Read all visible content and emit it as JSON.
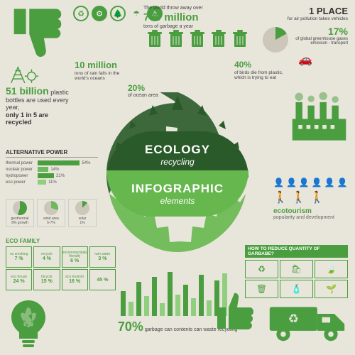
{
  "colors": {
    "bg": "#e8e5db",
    "green": "#4a9e3f",
    "darkgreen": "#2a5a2a",
    "lightgreen": "#66b84e",
    "text": "#444444",
    "muted": "#999999",
    "cream": "#ccc7b8"
  },
  "top_icons": [
    "recycle",
    "factory",
    "tree",
    "umbrella",
    "warning"
  ],
  "garbage_stat": {
    "intro": "The world throw away over",
    "value": "750 million",
    "unit": "tons of garbage a year",
    "bin_count": 5
  },
  "place_stat": {
    "rank": "1 PLACE",
    "desc": "for air pollution takes vehicles"
  },
  "gases_stat": {
    "pct": "17%",
    "pct_value": 17,
    "desc": "of global greenhouse gases emission - transport"
  },
  "plastic_stat": {
    "value": "51 billion",
    "line1": "plastic bottles are used every year,",
    "line2": "only 1 in 5 are recycled"
  },
  "rain_stat": {
    "value": "10 million",
    "desc": "tons of rain falls in the world's oceans"
  },
  "ocean20": {
    "value": "20%",
    "desc": "of ocean area"
  },
  "birds_stat": {
    "value": "40%",
    "desc": "of birds die from plastic, which is trying to eat"
  },
  "center": {
    "title1": "ECOLOGY",
    "sub1": "recycling",
    "title2": "INFOGRAPHIC",
    "sub2": "elements"
  },
  "alt_power": {
    "title": "ALTERNATIVE POWER",
    "bars": [
      {
        "label": "thermal power",
        "pct": 54,
        "color": "#4a9e3f"
      },
      {
        "label": "nuclear power",
        "pct": 14,
        "color": "#6fb85f"
      },
      {
        "label": "hydropower",
        "pct": 21,
        "color": "#4a9e3f"
      },
      {
        "label": "eco power",
        "pct": 11,
        "color": "#8fcf7f"
      }
    ],
    "mini": [
      {
        "label": "geothermal",
        "sub": "8% growth",
        "pie": 55,
        "c1": "#4a9e3f",
        "c2": "#ccc7b8"
      },
      {
        "label": "wind area",
        "sub": "5-7%",
        "pie": 30,
        "c1": "#6fb85f",
        "c2": "#ccc7b8"
      },
      {
        "label": "solar",
        "sub": "1%",
        "pie": 12,
        "c1": "#4a9e3f",
        "c2": "#ccc7b8"
      }
    ]
  },
  "eco_family": {
    "title": "ECO FAMILY",
    "cells": [
      {
        "label": "no smoking",
        "v": "7 %"
      },
      {
        "label": "recycle",
        "v": "4 %"
      },
      {
        "label": "environmentally friendly",
        "v": "6 %"
      },
      {
        "label": "rain water",
        "v": "3 %"
      },
      {
        "label": "eco house",
        "v": "24 %"
      },
      {
        "label": "bicycle",
        "v": "15 %"
      },
      {
        "label": "eco tourism",
        "v": "16 %"
      },
      {
        "label": "",
        "v": "45 %"
      }
    ]
  },
  "ecotourism": {
    "title": "ecotourism",
    "sub": "popularity and development",
    "people_count": 6,
    "hiker_count": 3
  },
  "reduce": {
    "title": "HOW TO REDUCE QUANTITY OF GARBABE?",
    "icons": [
      "recycle",
      "bag",
      "leaf",
      "bin",
      "bottle",
      "plant"
    ]
  },
  "bottom_bars": {
    "values": [
      35,
      20,
      48,
      28,
      55,
      18,
      62,
      30,
      44,
      25,
      58,
      22,
      50,
      60
    ],
    "color_alt": [
      "#4a9e3f",
      "#8fcf7f"
    ]
  },
  "garbage70": {
    "value": "70%",
    "desc": "garbage can contents can waste recycling"
  }
}
